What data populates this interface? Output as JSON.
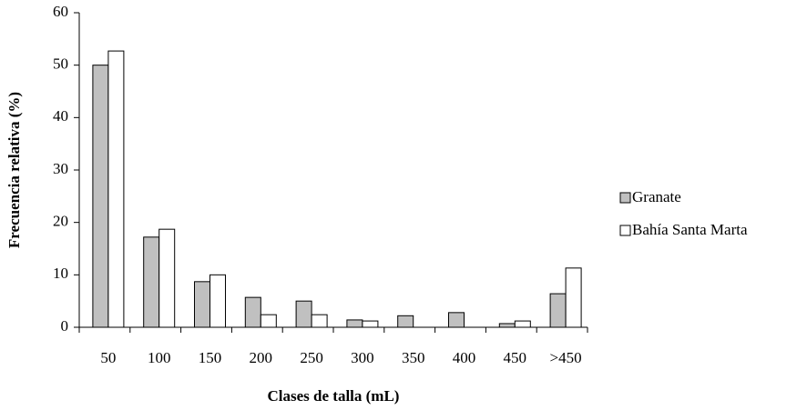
{
  "chart_data": {
    "type": "bar",
    "x_label": "Clases de talla (mL)",
    "y_label": "Frecuencia relativa (%)",
    "categories": [
      "50",
      "100",
      "150",
      "200",
      "250",
      "300",
      "350",
      "400",
      "450",
      ">450"
    ],
    "series": [
      {
        "name": "Granate",
        "color": "#c0c0c0",
        "values": [
          50,
          17.2,
          8.7,
          5.7,
          5.0,
          1.4,
          2.2,
          2.8,
          0.7,
          6.4
        ]
      },
      {
        "name": "Bahía Santa Marta",
        "color": "#ffffff",
        "values": [
          52.7,
          18.7,
          10,
          2.4,
          2.4,
          1.2,
          0,
          0,
          1.2,
          11.3
        ]
      }
    ],
    "ylim": [
      0,
      60
    ],
    "yticks": [
      0,
      10,
      20,
      30,
      40,
      50,
      60
    ]
  }
}
